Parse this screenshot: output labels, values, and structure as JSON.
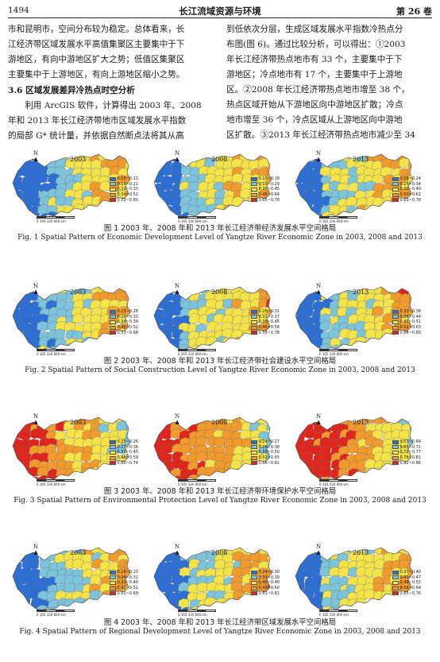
{
  "header": {
    "page_number": "1494",
    "journal": "长江流域资源与环境",
    "volume": "第 26 卷"
  },
  "body_text": {
    "left": [
      "市和昆明市，空间分布较为稳定。总体看来，长",
      "江经济带区域发展水平高值集聚区主要集中于下",
      "游地区，有向中游地区扩大之势；低值区集聚区",
      "主要集中于上游地区，有向上游地区缩小之势。"
    ],
    "section_heading": "3.6  区域发展差异冷热点时空分析",
    "left_after": [
      "利用 ArcGIS 软件，计算得出 2003 年、2008",
      "年和 2013 年长江经济带地市区域发展水平指数",
      "的局部 G* 统计量，并依据自然断点法将其从高"
    ],
    "right": [
      "到低依次分层，生成区域发展水平指数冷热点分",
      "布图(图 6)。通过比较分析，可以得出：①2003",
      "年长江经济带热点地市有 33 个，主要集中于下",
      "游地区；冷点地市有 17 个，主要集中于上游地",
      "区。②2008 年长江经济带热点地市增至 38 个，",
      "热点区域开始从下游地区向中游地区扩散；冷点",
      "地市增至 36 个，冷点区域从上游地区向中游地",
      "区扩散。③2013 年长江经济带热点地市减少至 34"
    ]
  },
  "map_common": {
    "north_label": "N",
    "scale_label": "0  165 330    660 km"
  },
  "figures": [
    {
      "caption_cn": "图 1   2003 年、2008 年和 2013 年长江经济带经济发展水平空间格局",
      "caption_en": "Fig. 1   Spatial Pattern of Economic Development Level of Yangtze River Economic Zone in 2003, 2008 and 2013",
      "panels": [
        {
          "year": "2003",
          "legend": [
            "0.05~0.13",
            "0.14~0.21",
            "0.22~0.33",
            "0.34~0.52",
            "0.53~0.80"
          ],
          "colors": [
            "#2b6fd6",
            "#7cc4dc",
            "#f4e44a",
            "#f39a2c",
            "#e0261c"
          ],
          "bias": 0.0
        },
        {
          "year": "2008",
          "legend": [
            "0.10~0.18",
            "0.19~0.29",
            "0.30~0.45",
            "0.46~0.64",
            "0.65~0.78"
          ],
          "colors": [
            "#2b6fd6",
            "#7cc4dc",
            "#f4e44a",
            "#f39a2c",
            "#e0261c"
          ],
          "bias": 0.05
        },
        {
          "year": "2013",
          "legend": [
            "0.09~0.24",
            "0.25~0.34",
            "0.35~0.49",
            "0.50~0.62",
            "0.63~0.78"
          ],
          "colors": [
            "#2b6fd6",
            "#7cc4dc",
            "#f4e44a",
            "#f39a2c",
            "#e0261c"
          ],
          "bias": 0.1
        }
      ]
    },
    {
      "caption_cn": "图 2   2003 年、2008 年和 2013 年长江经济带社会建设水平空间格局",
      "caption_en": "Fig. 2   Spatial Pattern of Social Construction Level of Yangtze River Economic Zone in 2003, 2008 and 2013",
      "panels": [
        {
          "year": "2003",
          "legend": [
            "0.23~0.28",
            "0.29~0.33",
            "0.34~0.39",
            "0.40~0.52",
            "0.53~0.68"
          ],
          "colors": [
            "#2b6fd6",
            "#7cc4dc",
            "#f4e44a",
            "#f39a2c",
            "#e0261c"
          ],
          "bias": 0.0
        },
        {
          "year": "2008",
          "legend": [
            "0.26~0.31",
            "0.32~0.37",
            "0.38~0.45",
            "0.46~0.58",
            "0.59~0.78"
          ],
          "colors": [
            "#2b6fd6",
            "#7cc4dc",
            "#f4e44a",
            "#f39a2c",
            "#e0261c"
          ],
          "bias": 0.05
        },
        {
          "year": "2013",
          "legend": [
            "0.33~0.38",
            "0.39~0.44",
            "0.45~0.51",
            "0.52~0.63",
            "0.64~0.80"
          ],
          "colors": [
            "#2b6fd6",
            "#7cc4dc",
            "#f4e44a",
            "#f39a2c",
            "#e0261c"
          ],
          "bias": 0.08
        }
      ]
    },
    {
      "caption_cn": "图 3   2003 年、2008 年和 2013 年长江经济带环境保护水平空间格局",
      "caption_en": "Fig. 3   Spatial Pattern of Environmental Protection Level of Yangtze River Economic Zone in 2003, 2008 and 2013",
      "panels": [
        {
          "year": "2003",
          "legend": [
            "0.25~0.26",
            "0.27~0.36",
            "0.37~0.45",
            "0.46~0.59",
            "0.60~0.74"
          ],
          "colors": [
            "#2b6fd6",
            "#7cc4dc",
            "#f4e44a",
            "#f39a2c",
            "#e0261c"
          ],
          "bias": 0.35
        },
        {
          "year": "2008",
          "legend": [
            "0.24~0.27",
            "0.28~0.38",
            "0.39~0.50",
            "0.51~0.65",
            "0.66~0.81"
          ],
          "colors": [
            "#2b6fd6",
            "#7cc4dc",
            "#f4e44a",
            "#f39a2c",
            "#e0261c"
          ],
          "bias": 0.4
        },
        {
          "year": "2013",
          "legend": [
            "0.53~0.64",
            "0.65~0.71",
            "0.72~0.77",
            "0.78~0.81",
            "0.82~0.86"
          ],
          "colors": [
            "#2b6fd6",
            "#7cc4dc",
            "#f4e44a",
            "#f39a2c",
            "#e0261c"
          ],
          "bias": 0.45
        }
      ]
    },
    {
      "caption_cn": "图 4   2003 年、2008 年和 2013 年长江经济带区域发展水平空间格局",
      "caption_en": "Fig. 4   Spatial Pattern of Regional Development Level of Yangtze River Economic Zone in 2003, 2008 and 2013",
      "panels": [
        {
          "year": "2003",
          "legend": [
            "0.16~0.23",
            "0.24~0.31",
            "0.32~0.40",
            "0.41~0.51",
            "0.52~0.69"
          ],
          "colors": [
            "#2b6fd6",
            "#7cc4dc",
            "#f4e44a",
            "#f39a2c",
            "#e0261c"
          ],
          "bias": 0.0
        },
        {
          "year": "2008",
          "legend": [
            "0.24~0.30",
            "0.31~0.39",
            "0.40~0.48",
            "0.49~0.60",
            "0.61~0.81"
          ],
          "colors": [
            "#2b6fd6",
            "#7cc4dc",
            "#f4e44a",
            "#f39a2c",
            "#e0261c"
          ],
          "bias": 0.05
        },
        {
          "year": "2013",
          "legend": [
            "0.37~0.40",
            "0.41~0.47",
            "0.48~0.55",
            "0.56~0.64",
            "0.65~0.76"
          ],
          "colors": [
            "#2b6fd6",
            "#7cc4dc",
            "#f4e44a",
            "#f39a2c",
            "#e0261c"
          ],
          "bias": 0.1
        }
      ]
    }
  ]
}
